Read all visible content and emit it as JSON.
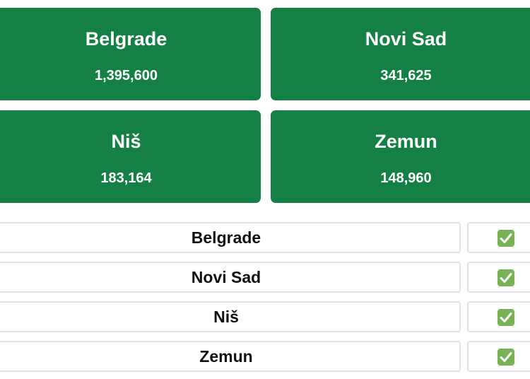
{
  "cards": [
    {
      "city": "Belgrade",
      "population": "1,395,600"
    },
    {
      "city": "Novi Sad",
      "population": "341,625"
    },
    {
      "city": "Niš",
      "population": "183,164"
    },
    {
      "city": "Zemun",
      "population": "148,960"
    }
  ],
  "list": [
    {
      "city": "Belgrade",
      "checked": true
    },
    {
      "city": "Novi Sad",
      "checked": true
    },
    {
      "city": "Niš",
      "checked": true
    },
    {
      "city": "Zemun",
      "checked": true
    }
  ],
  "colors": {
    "card_bg": "#158045",
    "check_bg": "#77b255",
    "row_border": "#e3e3e3"
  },
  "icons": {
    "check": "check-mark-button-icon"
  }
}
